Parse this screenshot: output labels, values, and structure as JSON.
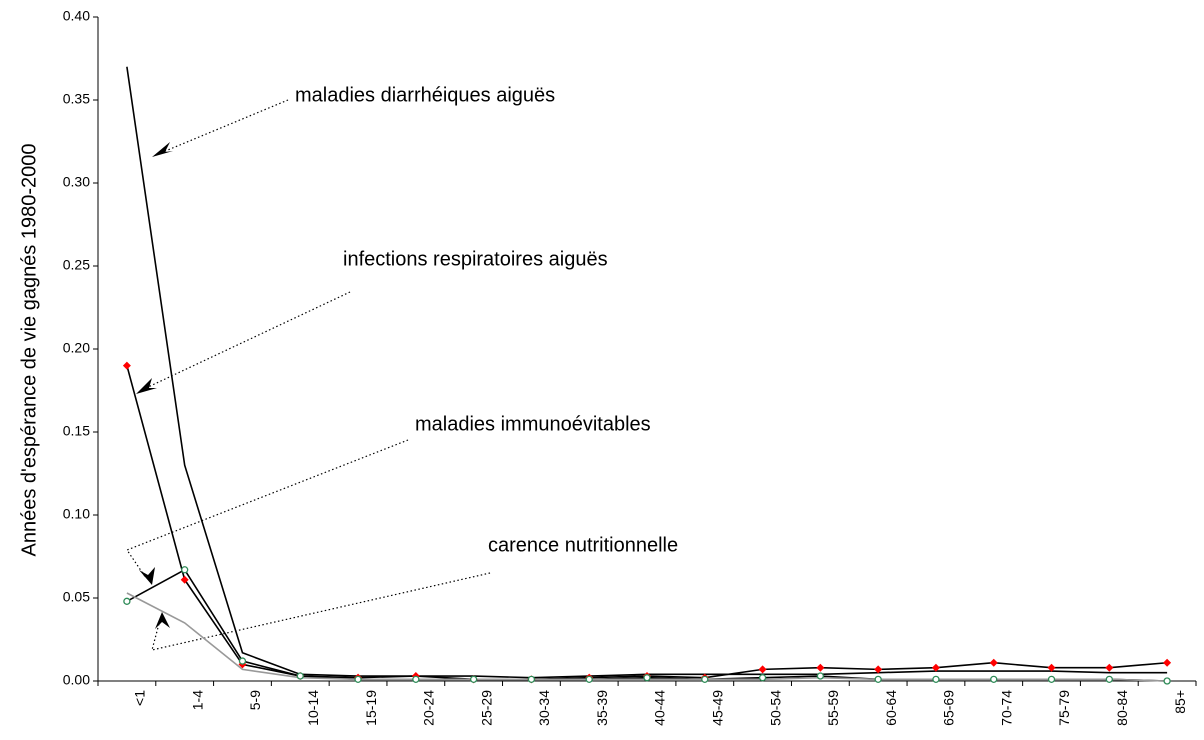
{
  "chart_data": {
    "type": "line",
    "y_label": "Années d'espérance de vie gagnés 1980-2000",
    "categories": [
      "<1",
      "1-4",
      "5-9",
      "10-14",
      "15-19",
      "20-24",
      "25-29",
      "30-34",
      "35-39",
      "40-44",
      "45-49",
      "50-54",
      "55-59",
      "60-64",
      "65-69",
      "70-74",
      "75-79",
      "80-84",
      "85+"
    ],
    "series": [
      {
        "name": "maladies diarrhéiques aiguës",
        "color": "#000000",
        "values": [
          0.37,
          0.13,
          0.017,
          0.004,
          0.003,
          0.003,
          0.003,
          0.002,
          0.003,
          0.004,
          0.004,
          0.004,
          0.004,
          0.005,
          0.006,
          0.006,
          0.006,
          0.005,
          0.005
        ]
      },
      {
        "name": "infections respiratoires aiguës",
        "color": "#000000",
        "marker": "diamond",
        "marker_color": "#ff0000",
        "values": [
          0.19,
          0.061,
          0.01,
          0.003,
          0.002,
          0.003,
          0.001,
          0.001,
          0.002,
          0.003,
          0.002,
          0.007,
          0.008,
          0.007,
          0.008,
          0.011,
          0.008,
          0.008,
          0.011
        ]
      },
      {
        "name": "maladies immunoévitables",
        "color": "#000000",
        "marker": "circle",
        "marker_color": "#2e8b57",
        "values": [
          0.048,
          0.067,
          0.012,
          0.003,
          0.001,
          0.001,
          0.001,
          0.001,
          0.001,
          0.002,
          0.001,
          0.002,
          0.003,
          0.001,
          0.001,
          0.001,
          0.001,
          0.001,
          0
        ]
      },
      {
        "name": "carence nutritionnelle",
        "color": "#999999",
        "values": [
          0.053,
          0.035,
          0.007,
          0.002,
          0.001,
          0.001,
          0.001,
          0.001,
          0.001,
          0.001,
          0.001,
          0.001,
          0.002,
          0.001,
          0.001,
          0.001,
          0.001,
          0.001,
          0
        ]
      }
    ],
    "ylim": [
      0,
      0.4
    ],
    "yticks": [
      {
        "value": 0,
        "label": "0.00"
      },
      {
        "value": 0.05,
        "label": "0.05"
      },
      {
        "value": 0.1,
        "label": "0.10"
      },
      {
        "value": 0.15,
        "label": "0.15"
      },
      {
        "value": 0.2,
        "label": "0.20"
      },
      {
        "value": 0.25,
        "label": "0.25"
      },
      {
        "value": 0.3,
        "label": "0.30"
      },
      {
        "value": 0.35,
        "label": "0.35"
      },
      {
        "value": 0.4,
        "label": "0.40"
      }
    ]
  }
}
